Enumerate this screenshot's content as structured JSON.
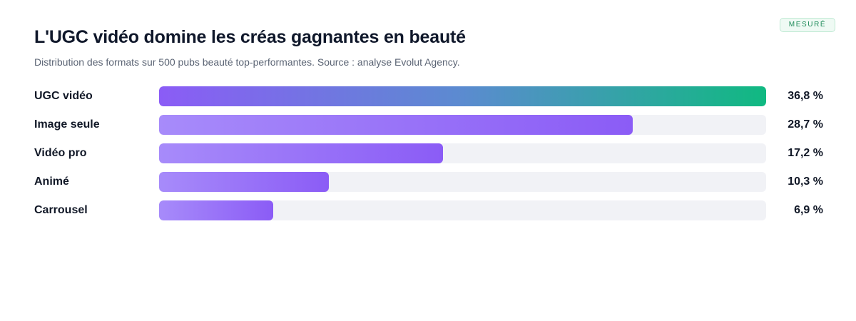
{
  "badge": "MESURÉ",
  "chart_data": {
    "type": "bar",
    "orientation": "horizontal",
    "title": "L'UGC vidéo domine les créas gagnantes en beauté",
    "subtitle": "Distribution des formats sur 500 pubs beauté top-performantes. Source : analyse Evolut Agency.",
    "categories": [
      "UGC vidéo",
      "Image seule",
      "Vidéo pro",
      "Animé",
      "Carrousel"
    ],
    "values": [
      36.8,
      28.7,
      17.2,
      10.3,
      6.9
    ],
    "value_labels": [
      "36,8 %",
      "28,7 %",
      "17,2 %",
      "10,3 %",
      "6,9 %"
    ],
    "xlim": [
      0,
      36.8
    ],
    "grid": false,
    "colors": {
      "bar_gradient": [
        "#a78bfa",
        "#8b5cf6"
      ],
      "top_bar_gradient": [
        "#8b5cf6",
        "#10b981"
      ],
      "track": "#f1f2f6"
    }
  }
}
